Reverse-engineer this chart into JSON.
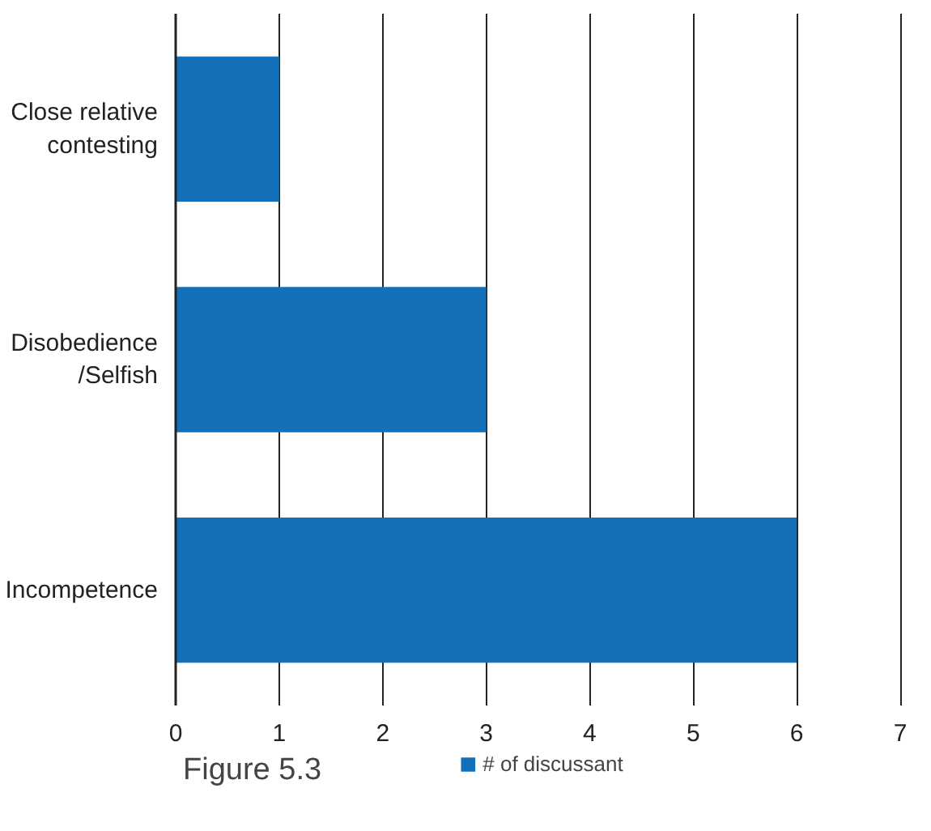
{
  "chart_data": {
    "type": "bar",
    "orientation": "horizontal",
    "categories": [
      "Close relative\ncontesting",
      "Disobedience\n/Selfish",
      "Incompetence"
    ],
    "series": [
      {
        "name": "# of discussant",
        "color": "#1470b8",
        "values": [
          1,
          3,
          6
        ]
      }
    ],
    "xlim": [
      0,
      7
    ],
    "xticks": [
      0,
      1,
      2,
      3,
      4,
      5,
      6,
      7
    ],
    "grid": "x",
    "legend": "bottom",
    "annotations": [
      "Figure 5.3"
    ]
  }
}
